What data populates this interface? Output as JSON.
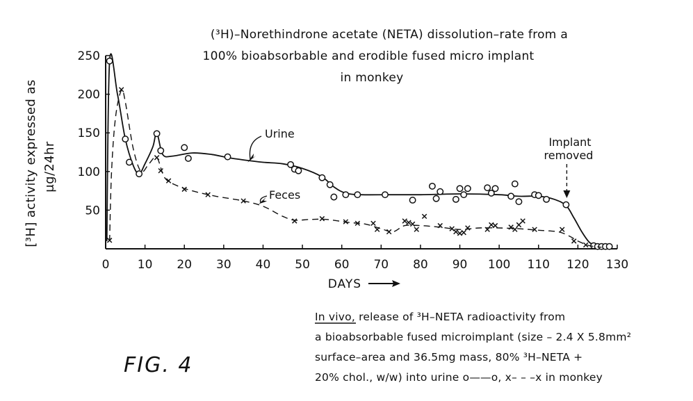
{
  "chart_data": {
    "type": "line",
    "title_lines": [
      "(³H)–Norethindrone acetate (NETA) dissolution–rate from a",
      "100% bioabsorbable and erodible fused micro implant",
      "in monkey"
    ],
    "ylabel_lines": [
      "[³H] activity expressed as",
      "μg/24hr"
    ],
    "xlabel": "DAYS",
    "xlim": [
      0,
      130
    ],
    "ylim": [
      0,
      250
    ],
    "x_ticks": [
      0,
      10,
      20,
      30,
      40,
      50,
      60,
      70,
      80,
      90,
      100,
      110,
      120,
      130
    ],
    "y_ticks": [
      50,
      100,
      150,
      200,
      250
    ],
    "series": [
      {
        "name": "Urine",
        "marker": "circle",
        "line_style": "solid",
        "curve": [
          [
            0.3,
            10
          ],
          [
            1,
            243
          ],
          [
            3,
            200
          ],
          [
            5,
            142
          ],
          [
            7,
            108
          ],
          [
            8.5,
            97
          ],
          [
            10,
            110
          ],
          [
            12,
            132
          ],
          [
            13,
            150
          ],
          [
            14.5,
            122
          ],
          [
            17,
            120
          ],
          [
            22,
            124
          ],
          [
            27,
            122
          ],
          [
            31,
            118
          ],
          [
            35,
            115
          ],
          [
            40,
            112
          ],
          [
            45,
            110
          ],
          [
            50,
            104
          ],
          [
            55,
            93
          ],
          [
            58,
            80
          ],
          [
            61,
            72
          ],
          [
            65,
            70
          ],
          [
            72,
            70
          ],
          [
            80,
            70
          ],
          [
            90,
            71
          ],
          [
            100,
            70
          ],
          [
            105,
            68
          ],
          [
            110,
            68
          ],
          [
            114,
            64
          ],
          [
            117,
            56
          ],
          [
            119,
            40
          ],
          [
            121,
            22
          ],
          [
            123,
            8
          ],
          [
            125,
            4
          ],
          [
            128,
            3
          ]
        ],
        "points": [
          [
            1,
            243
          ],
          [
            5,
            142
          ],
          [
            6,
            112
          ],
          [
            8.5,
            97
          ],
          [
            13,
            149
          ],
          [
            14,
            127
          ],
          [
            20,
            131
          ],
          [
            21,
            117
          ],
          [
            31,
            119
          ],
          [
            47,
            109
          ],
          [
            48,
            103
          ],
          [
            49,
            101
          ],
          [
            55,
            92
          ],
          [
            57,
            83
          ],
          [
            58,
            67
          ],
          [
            61,
            70
          ],
          [
            64,
            70
          ],
          [
            71,
            70
          ],
          [
            78,
            63
          ],
          [
            83,
            81
          ],
          [
            84,
            65
          ],
          [
            85,
            74
          ],
          [
            89,
            64
          ],
          [
            90,
            78
          ],
          [
            91,
            70
          ],
          [
            92,
            78
          ],
          [
            97,
            79
          ],
          [
            98,
            72
          ],
          [
            99,
            78
          ],
          [
            103,
            68
          ],
          [
            104,
            84
          ],
          [
            105,
            61
          ],
          [
            109,
            70
          ],
          [
            110,
            69
          ],
          [
            112,
            64
          ],
          [
            117,
            57
          ],
          [
            124,
            4
          ],
          [
            125,
            3
          ],
          [
            126,
            3
          ],
          [
            127,
            3
          ],
          [
            128,
            3
          ]
        ]
      },
      {
        "name": "Feces",
        "marker": "x",
        "line_style": "dashed",
        "curve": [
          [
            1,
            10
          ],
          [
            1.5,
            100
          ],
          [
            2.5,
            170
          ],
          [
            4,
            205
          ],
          [
            5,
            190
          ],
          [
            7,
            130
          ],
          [
            9,
            100
          ],
          [
            11,
            110
          ],
          [
            13,
            118
          ],
          [
            15,
            92
          ],
          [
            18,
            82
          ],
          [
            22,
            75
          ],
          [
            28,
            68
          ],
          [
            35,
            62
          ],
          [
            40,
            55
          ],
          [
            45,
            42
          ],
          [
            48,
            37
          ],
          [
            52,
            38
          ],
          [
            56,
            38
          ],
          [
            62,
            34
          ],
          [
            66,
            32
          ],
          [
            70,
            26
          ],
          [
            73,
            22
          ],
          [
            76,
            30
          ],
          [
            80,
            30
          ],
          [
            85,
            28
          ],
          [
            90,
            25
          ],
          [
            95,
            27
          ],
          [
            100,
            27
          ],
          [
            105,
            26
          ],
          [
            110,
            24
          ],
          [
            115,
            22
          ],
          [
            118,
            16
          ],
          [
            120,
            10
          ],
          [
            123,
            4
          ],
          [
            126,
            2
          ]
        ],
        "points": [
          [
            1,
            11
          ],
          [
            4,
            206
          ],
          [
            13,
            118
          ],
          [
            14,
            101
          ],
          [
            16,
            88
          ],
          [
            20,
            77
          ],
          [
            26,
            70
          ],
          [
            35,
            62
          ],
          [
            48,
            36
          ],
          [
            55,
            39
          ],
          [
            61,
            35
          ],
          [
            64,
            33
          ],
          [
            68,
            33
          ],
          [
            69,
            25
          ],
          [
            72,
            22
          ],
          [
            76,
            36
          ],
          [
            77,
            34
          ],
          [
            78,
            32
          ],
          [
            79,
            25
          ],
          [
            81,
            42
          ],
          [
            85,
            30
          ],
          [
            88,
            26
          ],
          [
            89,
            22
          ],
          [
            90,
            20
          ],
          [
            91,
            21
          ],
          [
            92,
            27
          ],
          [
            97,
            25
          ],
          [
            98,
            31
          ],
          [
            99,
            30
          ],
          [
            103,
            28
          ],
          [
            104,
            25
          ],
          [
            105,
            31
          ],
          [
            106,
            36
          ],
          [
            109,
            25
          ],
          [
            116,
            25
          ],
          [
            119,
            10
          ],
          [
            122,
            5
          ]
        ]
      }
    ],
    "annotations": [
      {
        "label": "Urine",
        "target": [
          35,
          108
        ]
      },
      {
        "label": "Feces",
        "target": [
          38,
          58
        ]
      },
      {
        "label_lines": [
          "Implant",
          "removed"
        ],
        "target": [
          117,
          62
        ]
      }
    ],
    "caption_lines": [
      "In vivo, release of ³H–NETA radioactivity from",
      "a bioabsorbable fused microimplant (size – 2.4 X 5.8mm²",
      "surface–area and 36.5mg mass, 80% ³H–NETA +",
      "20% chol., w/w) into urine o——o, x– – –x in monkey"
    ],
    "figure_label": "FIG. 4"
  }
}
